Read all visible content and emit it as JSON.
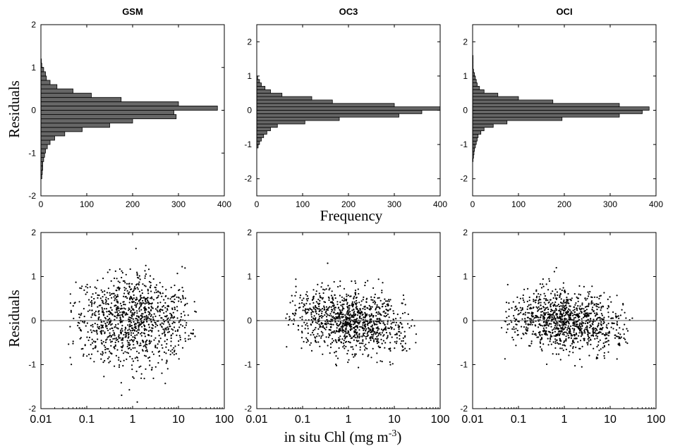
{
  "figure": {
    "top_ylabel": "Residuals",
    "top_xlabel": "Frequency",
    "bottom_ylabel": "Residuals",
    "bottom_xlabel_main": "in situ Chl (mg m",
    "bottom_xlabel_sup": "-3",
    "bottom_xlabel_close": ")"
  },
  "chart_data": [
    {
      "type": "bar",
      "orientation": "horizontal",
      "title": "GSM",
      "xlim": [
        0,
        400
      ],
      "ylim": [
        -2,
        2
      ],
      "xticks": [
        0,
        100,
        200,
        300,
        400
      ],
      "yticks": [
        -2,
        -1,
        0,
        1,
        2
      ],
      "bin_width": 0.1,
      "bin_centers": [
        -1.55,
        -1.45,
        -1.35,
        -1.25,
        -1.15,
        -1.05,
        -0.95,
        -0.85,
        -0.75,
        -0.65,
        -0.55,
        -0.45,
        -0.35,
        -0.25,
        -0.15,
        -0.05,
        0.05,
        0.15,
        0.25,
        0.35,
        0.45,
        0.55,
        0.65,
        0.75,
        0.85,
        0.95,
        1.05,
        1.15
      ],
      "values": [
        2,
        3,
        4,
        4,
        6,
        8,
        10,
        14,
        20,
        30,
        52,
        90,
        150,
        200,
        295,
        290,
        385,
        300,
        175,
        110,
        70,
        35,
        20,
        12,
        10,
        6,
        2,
        1
      ]
    },
    {
      "type": "bar",
      "orientation": "horizontal",
      "title": "OC3",
      "xlim": [
        0,
        400
      ],
      "ylim": [
        -2.5,
        2.5
      ],
      "xticks": [
        0,
        100,
        200,
        300,
        400
      ],
      "yticks": [
        -2,
        -1,
        0,
        1,
        2
      ],
      "bin_width": 0.1,
      "bin_centers": [
        -1.05,
        -0.95,
        -0.85,
        -0.75,
        -0.65,
        -0.55,
        -0.45,
        -0.35,
        -0.25,
        -0.15,
        -0.05,
        0.05,
        0.15,
        0.25,
        0.35,
        0.45,
        0.55,
        0.65,
        0.75,
        0.85,
        0.95
      ],
      "values": [
        3,
        6,
        10,
        15,
        22,
        30,
        45,
        105,
        180,
        310,
        360,
        400,
        300,
        165,
        120,
        55,
        30,
        18,
        10,
        6,
        2
      ]
    },
    {
      "type": "bar",
      "orientation": "horizontal",
      "title": "OCI",
      "xlim": [
        0,
        400
      ],
      "ylim": [
        -2.5,
        2.5
      ],
      "xticks": [
        0,
        100,
        200,
        300,
        400
      ],
      "yticks": [
        -2,
        -1,
        0,
        1,
        2
      ],
      "bin_width": 0.1,
      "bin_centers": [
        -1.45,
        -1.35,
        -1.25,
        -1.15,
        -1.05,
        -0.95,
        -0.85,
        -0.75,
        -0.65,
        -0.55,
        -0.45,
        -0.35,
        -0.25,
        -0.15,
        -0.05,
        0.05,
        0.15,
        0.25,
        0.35,
        0.45,
        0.55,
        0.65,
        0.75,
        0.85,
        0.95,
        1.05,
        1.15,
        1.25,
        1.35,
        1.45,
        1.55
      ],
      "values": [
        1,
        2,
        3,
        4,
        6,
        8,
        10,
        12,
        18,
        25,
        45,
        75,
        195,
        320,
        370,
        385,
        320,
        175,
        100,
        55,
        25,
        15,
        10,
        8,
        6,
        4,
        2,
        1,
        1,
        1,
        1
      ]
    },
    {
      "type": "scatter",
      "title": "GSM",
      "xscale": "log",
      "xlim": [
        0.01,
        100
      ],
      "ylim": [
        -2,
        2
      ],
      "xticks": [
        0.01,
        0.1,
        1,
        10,
        100
      ],
      "xticklabels": [
        "0.01",
        "0.1",
        "1",
        "10",
        "100"
      ],
      "yticks": [
        -2,
        -1,
        0,
        1,
        2
      ],
      "reference_line_y": 0,
      "generated_points": {
        "n": 1100,
        "x_log10_range": [
          -1.45,
          1.45
        ],
        "y_center": 0,
        "y_spread": 0.5,
        "trend_slope": 0
      }
    },
    {
      "type": "scatter",
      "title": "OC3",
      "xscale": "log",
      "xlim": [
        0.01,
        100
      ],
      "ylim": [
        -2,
        2
      ],
      "xticks": [
        0.01,
        0.1,
        1,
        10,
        100
      ],
      "xticklabels": [
        "0.01",
        "0.1",
        "1",
        "10",
        "100"
      ],
      "yticks": [
        -2,
        -1,
        0,
        1,
        2
      ],
      "reference_line_y": 0,
      "generated_points": {
        "n": 1100,
        "x_log10_range": [
          -1.4,
          1.5
        ],
        "y_center": 0,
        "y_spread": 0.35,
        "trend_slope": -0.06
      }
    },
    {
      "type": "scatter",
      "title": "OCI",
      "xscale": "log",
      "xlim": [
        0.01,
        100
      ],
      "ylim": [
        -2,
        2
      ],
      "xticks": [
        0.01,
        0.1,
        1,
        10,
        100
      ],
      "xticklabels": [
        "0.01",
        "0.1",
        "1",
        "10",
        "100"
      ],
      "yticks": [
        -2,
        -1,
        0,
        1,
        2
      ],
      "reference_line_y": 0,
      "generated_points": {
        "n": 1100,
        "x_log10_range": [
          -1.4,
          1.5
        ],
        "y_center": 0,
        "y_spread": 0.33,
        "trend_slope": -0.05
      }
    }
  ]
}
